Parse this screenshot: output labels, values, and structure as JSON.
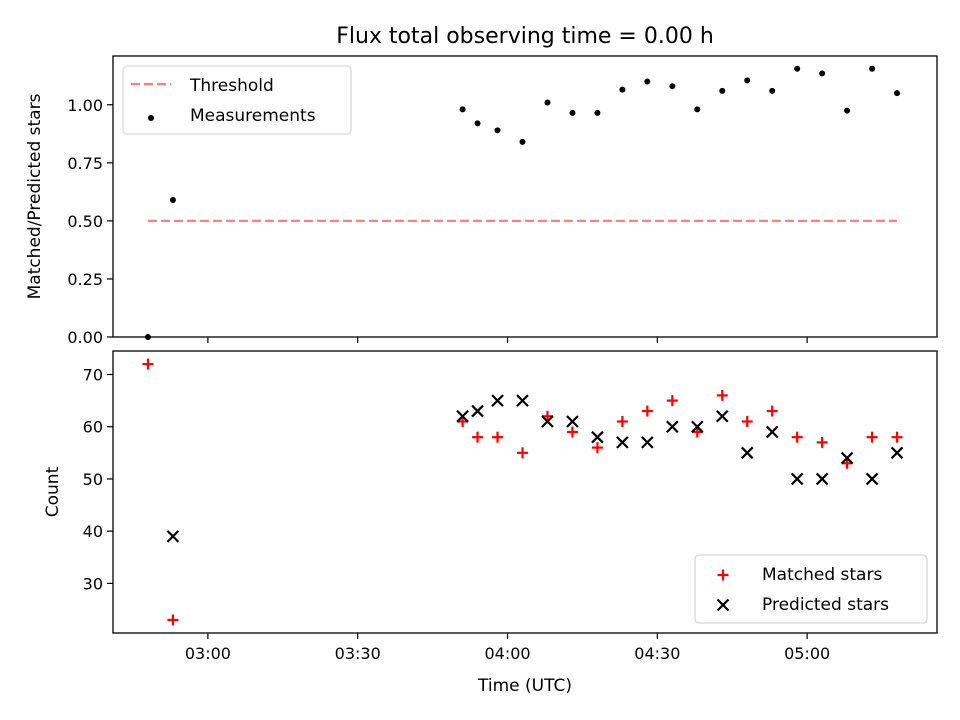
{
  "title": "Flux total observing time = 0.00 h",
  "chart_data": [
    {
      "type": "scatter",
      "ylabel": "Matched/Predicted stars",
      "ylim": [
        0,
        1.21
      ],
      "yticks": [
        "0.00",
        "0.25",
        "0.50",
        "0.75",
        "1.00"
      ],
      "xlim": [
        "02:41",
        "05:26"
      ],
      "xticks": [
        "03:00",
        "03:30",
        "04:00",
        "04:30",
        "05:00"
      ],
      "xtick_labels_shown": false,
      "legend_position": "upper-left",
      "series": [
        {
          "name": "Threshold",
          "kind": "dashed-line",
          "color": "#ff7f7f",
          "x": [
            "02:48",
            "05:18"
          ],
          "y": [
            0.5,
            0.5
          ]
        },
        {
          "name": "Measurements",
          "kind": "dot",
          "color": "#000000",
          "x": [
            "02:48",
            "02:53",
            "03:51",
            "03:54",
            "03:58",
            "04:03",
            "04:08",
            "04:13",
            "04:18",
            "04:23",
            "04:28",
            "04:33",
            "04:38",
            "04:43",
            "04:48",
            "04:53",
            "04:58",
            "05:03",
            "05:08",
            "05:13",
            "05:18"
          ],
          "y": [
            0.0,
            0.59,
            0.98,
            0.92,
            0.89,
            0.84,
            1.01,
            0.965,
            0.965,
            1.065,
            1.1,
            1.08,
            0.98,
            1.06,
            1.105,
            1.06,
            1.155,
            1.135,
            0.975,
            1.155,
            1.05
          ]
        }
      ]
    },
    {
      "type": "scatter",
      "xlabel": "Time (UTC)",
      "ylabel": "Count",
      "ylim": [
        20.5,
        74.5
      ],
      "yticks": [
        "30",
        "40",
        "50",
        "60",
        "70"
      ],
      "xlim": [
        "02:41",
        "05:26"
      ],
      "xticks": [
        "03:00",
        "03:30",
        "04:00",
        "04:30",
        "05:00"
      ],
      "legend_position": "lower-right",
      "series": [
        {
          "name": "Matched stars",
          "kind": "plus",
          "color": "#ff0000",
          "x": [
            "02:48",
            "02:53",
            "03:51",
            "03:54",
            "03:58",
            "04:03",
            "04:08",
            "04:13",
            "04:18",
            "04:23",
            "04:28",
            "04:33",
            "04:38",
            "04:43",
            "04:48",
            "04:53",
            "04:58",
            "05:03",
            "05:08",
            "05:13",
            "05:18"
          ],
          "y": [
            72,
            23,
            61,
            58,
            58,
            55,
            62,
            59,
            56,
            61,
            63,
            65,
            59,
            66,
            61,
            63,
            58,
            57,
            53,
            58,
            58
          ]
        },
        {
          "name": "Predicted stars",
          "kind": "x",
          "color": "#000000",
          "x": [
            "02:53",
            "03:51",
            "03:54",
            "03:58",
            "04:03",
            "04:08",
            "04:13",
            "04:18",
            "04:23",
            "04:28",
            "04:33",
            "04:38",
            "04:43",
            "04:48",
            "04:53",
            "04:58",
            "05:03",
            "05:08",
            "05:13",
            "05:18"
          ],
          "y": [
            39,
            62,
            63,
            65,
            65,
            61,
            61,
            58,
            57,
            57,
            60,
            60,
            62,
            55,
            59,
            50,
            50,
            54,
            50,
            55
          ]
        }
      ]
    }
  ]
}
